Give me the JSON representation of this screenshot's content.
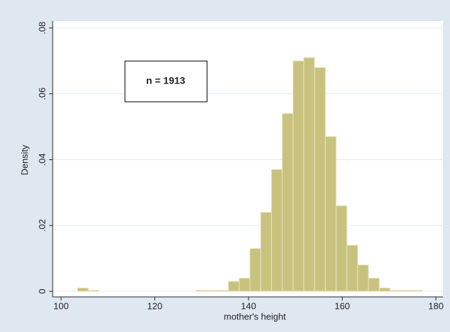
{
  "chart_data": {
    "type": "histogram",
    "x_label": "mother's height",
    "y_label": "Density",
    "annotation": "n = 1913",
    "bins": [
      103.5,
      105.8,
      108.1,
      110.4,
      112.7,
      115,
      117.3,
      119.6,
      121.9,
      124.2,
      126.5,
      128.8,
      131.1,
      133.4,
      135.7,
      138,
      140.3,
      142.6,
      144.9,
      147.2,
      149.5,
      151.8,
      154.1,
      156.4,
      158.7,
      161,
      163.3,
      165.6,
      167.9,
      170.2,
      172.5,
      174.8,
      177.1
    ],
    "values": [
      0.001,
      0.0003,
      0,
      0,
      0,
      0,
      0,
      0,
      0,
      0,
      0,
      0.0003,
      0.0003,
      0.0003,
      0.003,
      0.004,
      0.013,
      0.024,
      0.037,
      0.054,
      0.07,
      0.071,
      0.068,
      0.047,
      0.026,
      0.014,
      0.008,
      0.004,
      0.001,
      0.0003,
      0.0003,
      0.0003
    ],
    "color": "#c9c27e",
    "xlim": [
      98.2,
      181.5
    ],
    "ylim": [
      -0.0017,
      0.0821
    ],
    "xticks": [
      100,
      120,
      140,
      160,
      180
    ],
    "yticks": [
      0,
      {
        "value": 0.02,
        "label": ".02"
      },
      {
        "value": 0.04,
        "label": ".04"
      },
      {
        "value": 0.06,
        "label": ".06"
      },
      {
        "value": 0.08,
        "label": ".08"
      }
    ],
    "grid": true
  }
}
